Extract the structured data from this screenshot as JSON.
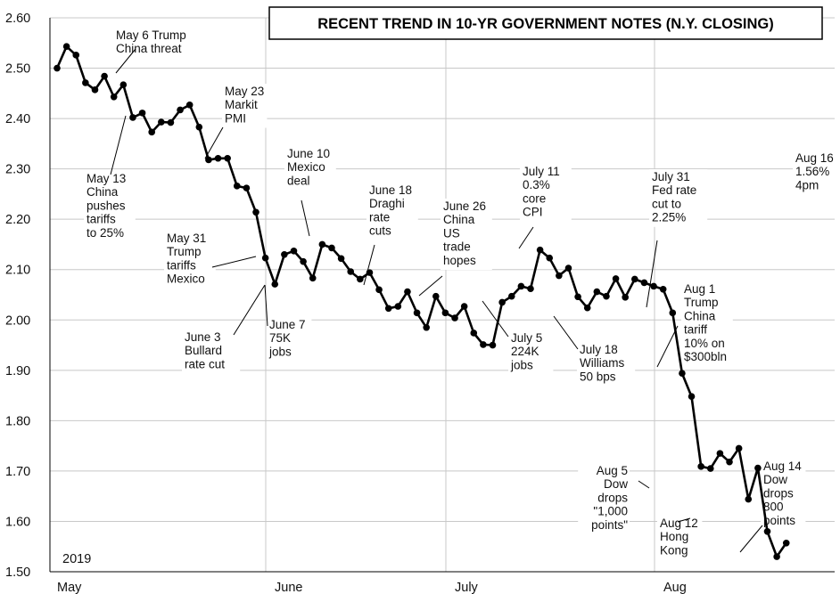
{
  "chart_data": {
    "type": "line",
    "title": "RECENT TREND IN 10-YR GOVERNMENT NOTES (N.Y. CLOSING)",
    "year_label": "2019",
    "ylim": [
      1.5,
      2.6
    ],
    "y_ticks": [
      "1.50",
      "1.60",
      "1.70",
      "1.80",
      "1.90",
      "2.00",
      "2.10",
      "2.20",
      "2.30",
      "2.40",
      "2.50",
      "2.60"
    ],
    "x_month_labels": [
      "May",
      "June",
      "July",
      "Aug"
    ],
    "grid": true,
    "series": [
      {
        "values": [
          2.5,
          2.543,
          2.526,
          2.471,
          2.457,
          2.484,
          2.443,
          2.467,
          2.402,
          2.411,
          2.373,
          2.393,
          2.392,
          2.417,
          2.427,
          2.383,
          2.318,
          2.321,
          2.321,
          2.266,
          2.262,
          2.214,
          2.123,
          2.071,
          2.13,
          2.137,
          2.116,
          2.083,
          2.15,
          2.143,
          2.122,
          2.096,
          2.081,
          2.094,
          2.06,
          2.023,
          2.027,
          2.056,
          2.014,
          1.985,
          2.047,
          2.014,
          2.004,
          2.027,
          1.974,
          1.951,
          1.95,
          2.035,
          2.047,
          2.067,
          2.062,
          2.139,
          2.123,
          2.088,
          2.103,
          2.046,
          2.024,
          2.056,
          2.047,
          2.082,
          2.045,
          2.081,
          2.074,
          2.067,
          2.061,
          2.014,
          1.894,
          1.848,
          1.709,
          1.705,
          1.735,
          1.718,
          1.745,
          1.644,
          1.706,
          1.58,
          1.53,
          1.557
        ]
      }
    ],
    "annotations": [
      {
        "lines": [
          "May 6 Trump",
          "China threat"
        ]
      },
      {
        "lines": [
          "May 13",
          "China",
          "pushes",
          "tariffs",
          "to 25%"
        ]
      },
      {
        "lines": [
          "May 23",
          "Markit",
          "PMI"
        ]
      },
      {
        "lines": [
          "May 31",
          "Trump",
          "tariffs",
          "Mexico"
        ]
      },
      {
        "lines": [
          "June 3",
          "Bullard",
          "rate cut"
        ]
      },
      {
        "lines": [
          "June 7",
          "75K",
          "jobs"
        ]
      },
      {
        "lines": [
          "June 10",
          "Mexico",
          "deal"
        ]
      },
      {
        "lines": [
          "June 18",
          "Draghi",
          "rate",
          "cuts"
        ]
      },
      {
        "lines": [
          "June 26",
          "China",
          "US",
          "trade",
          "hopes"
        ]
      },
      {
        "lines": [
          "July 5",
          "224K",
          "jobs"
        ]
      },
      {
        "lines": [
          "July 11",
          "0.3%",
          "core",
          "CPI"
        ]
      },
      {
        "lines": [
          "July 18",
          "Williams",
          "50 bps"
        ]
      },
      {
        "lines": [
          "July 31",
          "Fed rate",
          "cut to",
          "2.25%"
        ]
      },
      {
        "lines": [
          "Aug 1",
          "Trump",
          "China",
          "tariff",
          "10% on",
          "$300bln"
        ]
      },
      {
        "lines": [
          "Aug 5",
          "Dow",
          "drops",
          "\"1,000",
          "points\""
        ]
      },
      {
        "lines": [
          "Aug 12",
          "Hong",
          "Kong"
        ]
      },
      {
        "lines": [
          "Aug 14",
          "Dow",
          "drops",
          "800",
          "points"
        ]
      },
      {
        "lines": [
          "Aug 16",
          "1.56%",
          "4pm"
        ]
      }
    ]
  }
}
